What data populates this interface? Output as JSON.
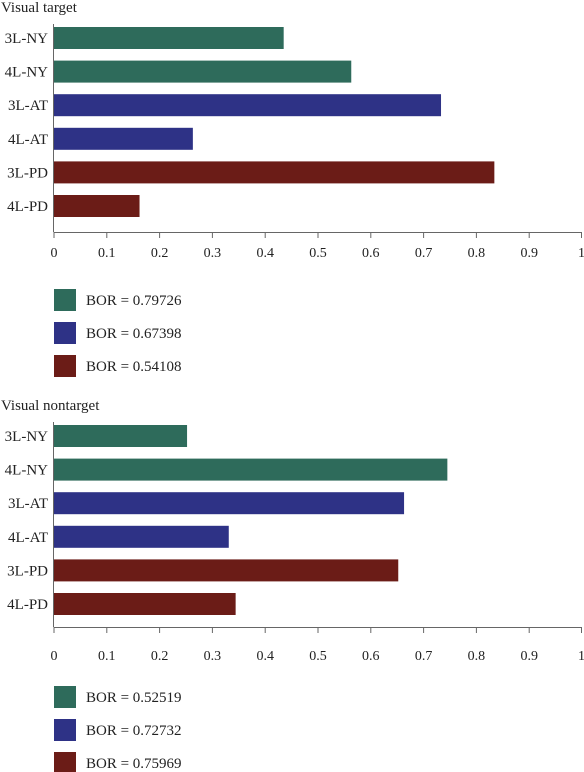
{
  "colors": {
    "ny": "#2e6b5b",
    "at": "#2e3286",
    "pd": "#6b1c17"
  },
  "chart_data": [
    {
      "type": "bar",
      "orientation": "horizontal",
      "title": "Visual target",
      "categories": [
        "3L-NY",
        "4L-NY",
        "3L-AT",
        "4L-AT",
        "3L-PD",
        "4L-PD"
      ],
      "values": [
        0.435,
        0.563,
        0.733,
        0.263,
        0.834,
        0.162
      ],
      "bar_colors": [
        "ny",
        "ny",
        "at",
        "at",
        "pd",
        "pd"
      ],
      "xlim": [
        0,
        1
      ],
      "xticks": [
        "0",
        "0.1",
        "0.2",
        "0.3",
        "0.4",
        "0.5",
        "0.6",
        "0.7",
        "0.8",
        "0.9",
        "1"
      ],
      "grid": false,
      "legend": [
        {
          "color": "ny",
          "label": "BOR = 0.79726"
        },
        {
          "color": "at",
          "label": "BOR = 0.67398"
        },
        {
          "color": "pd",
          "label": "BOR = 0.54108"
        }
      ],
      "legend_position": "below"
    },
    {
      "type": "bar",
      "orientation": "horizontal",
      "title": "Visual nontarget",
      "categories": [
        "3L-NY",
        "4L-NY",
        "3L-AT",
        "4L-AT",
        "3L-PD",
        "4L-PD"
      ],
      "values": [
        0.252,
        0.745,
        0.663,
        0.331,
        0.652,
        0.344
      ],
      "bar_colors": [
        "ny",
        "ny",
        "at",
        "at",
        "pd",
        "pd"
      ],
      "xlim": [
        0,
        1
      ],
      "xticks": [
        "0",
        "0.1",
        "0.2",
        "0.3",
        "0.4",
        "0.5",
        "0.6",
        "0.7",
        "0.8",
        "0.9",
        "1"
      ],
      "grid": false,
      "legend": [
        {
          "color": "ny",
          "label": "BOR = 0.52519"
        },
        {
          "color": "at",
          "label": "BOR = 0.72732"
        },
        {
          "color": "pd",
          "label": "BOR = 0.75969"
        }
      ],
      "legend_position": "below"
    }
  ]
}
